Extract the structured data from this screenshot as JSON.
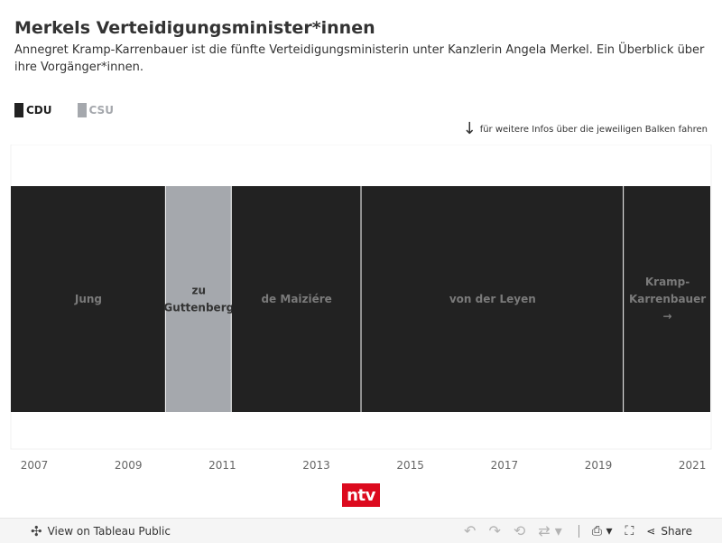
{
  "header": {
    "title": "Merkels Verteidigungsminister*innen",
    "subtitle": "Annegret Kramp-Karrenbauer ist die fünfte Verteidigungsministerin unter Kanzlerin Angela Merkel. Ein Überblick über ihre Vorgänger*innen."
  },
  "legend": {
    "items": [
      {
        "label": "CDU",
        "color": "#222222",
        "text_color": "#222222"
      },
      {
        "label": "CSU",
        "color": "#a5a8ad",
        "text_color": "#a5a8ad"
      }
    ]
  },
  "hint": {
    "icon": "down-arrow-icon",
    "text": "für weitere Infos über die jeweiligen Balken fahren"
  },
  "chart_data": {
    "type": "bar",
    "orientation": "horizontal-timeline",
    "xlim": [
      2006.5,
      2021.4
    ],
    "x_ticks": [
      "2007",
      "2009",
      "2011",
      "2013",
      "2015",
      "2017",
      "2019",
      "2021"
    ],
    "x_tick_values": [
      2007,
      2009,
      2011,
      2013,
      2015,
      2017,
      2019,
      2021
    ],
    "segments": [
      {
        "label_lines": [
          "Jung"
        ],
        "party": "CDU",
        "start": 2005.9,
        "end": 2009.8,
        "color": "#222222",
        "label_color": "#7a7a7a"
      },
      {
        "label_lines": [
          "zu",
          "Guttenberg"
        ],
        "party": "CSU",
        "start": 2009.8,
        "end": 2011.2,
        "color": "#a5a8ad",
        "label_color": "#333333"
      },
      {
        "label_lines": [
          "de Maiziére"
        ],
        "party": "CDU",
        "start": 2011.2,
        "end": 2013.96,
        "color": "#222222",
        "label_color": "#7a7a7a"
      },
      {
        "label_lines": [
          "von der Leyen"
        ],
        "party": "CDU",
        "start": 2013.96,
        "end": 2019.54,
        "color": "#222222",
        "label_color": "#7a7a7a"
      },
      {
        "label_lines": [
          "Kramp-",
          "Karrenbauer",
          "→"
        ],
        "party": "CDU",
        "start": 2019.54,
        "end": 2021.4,
        "color": "#222222",
        "label_color": "#7a7a7a"
      }
    ]
  },
  "branding": {
    "logo_text": "ntv"
  },
  "toolbar": {
    "view_label": "View on Tableau Public",
    "share_label": "Share",
    "icons": {
      "tableau": "tableau-logo-icon",
      "undo": "undo-icon",
      "redo": "redo-icon",
      "revert": "revert-icon",
      "refresh": "refresh-icon",
      "download": "download-icon",
      "fullscreen": "fullscreen-icon",
      "share": "share-icon"
    }
  }
}
